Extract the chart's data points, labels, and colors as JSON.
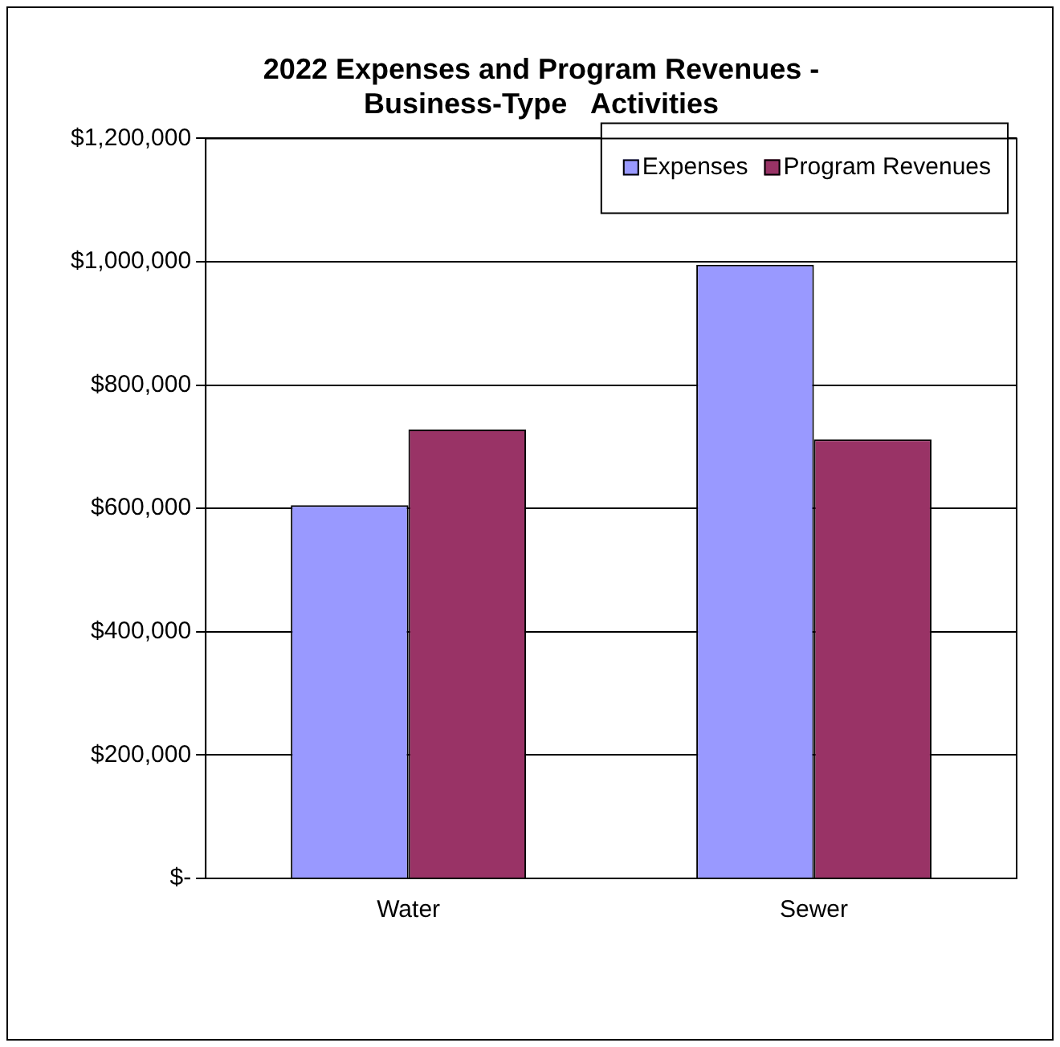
{
  "chart_data": {
    "type": "bar",
    "title": [
      "2022 Expenses and Program Revenues -",
      "Business-Type   Activities"
    ],
    "categories": [
      "Water",
      "Sewer"
    ],
    "series": [
      {
        "name": "Expenses",
        "color": "#9999ff",
        "values": [
          605000,
          995000
        ]
      },
      {
        "name": "Program Revenues",
        "color": "#993366",
        "values": [
          728000,
          712000
        ]
      }
    ],
    "ylim": [
      0,
      1200000
    ],
    "yticks": [
      {
        "value": 0,
        "label": "$-"
      },
      {
        "value": 200000,
        "label": "$200,000"
      },
      {
        "value": 400000,
        "label": "$400,000"
      },
      {
        "value": 600000,
        "label": "$600,000"
      },
      {
        "value": 800000,
        "label": "$800,000"
      },
      {
        "value": 1000000,
        "label": "$1,000,000"
      },
      {
        "value": 1200000,
        "label": "$1,200,000"
      }
    ],
    "grid": "y",
    "legend": "top right"
  }
}
